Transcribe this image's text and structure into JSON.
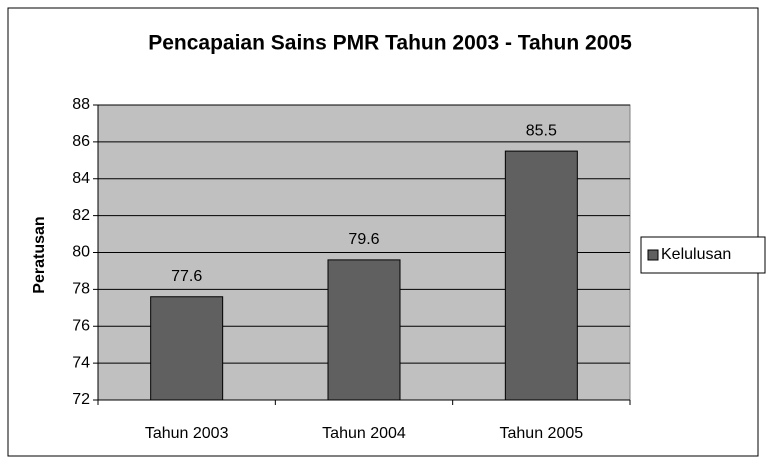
{
  "chart_data": {
    "type": "bar",
    "title": "Pencapaian Sains PMR Tahun 2003 - Tahun 2005",
    "y_label": "Peratusan",
    "categories": [
      "Tahun 2003",
      "Tahun 2004",
      "Tahun 2005"
    ],
    "series": [
      {
        "name": "Kelulusan",
        "color": "#606060",
        "values": [
          77.6,
          79.6,
          85.5
        ]
      }
    ],
    "ylim": [
      72,
      88
    ],
    "yticks": [
      72,
      74,
      76,
      78,
      80,
      82,
      84,
      86,
      88
    ],
    "grid": true,
    "legend": "right"
  }
}
